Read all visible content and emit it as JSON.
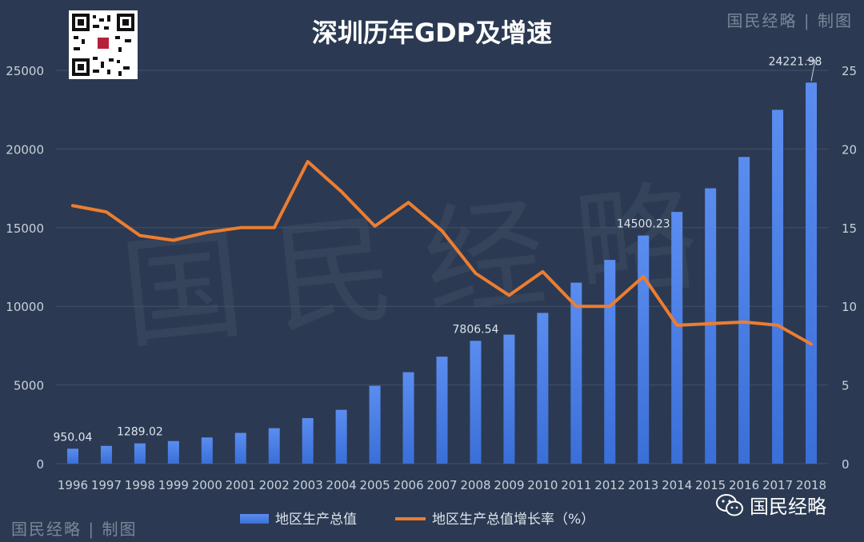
{
  "chart_data": {
    "type": "bar+line",
    "title": "深圳历年GDP及增速",
    "categories": [
      "1996",
      "1997",
      "1998",
      "1999",
      "2000",
      "2001",
      "2002",
      "2003",
      "2004",
      "2005",
      "2006",
      "2007",
      "2008",
      "2009",
      "2010",
      "2011",
      "2012",
      "2013",
      "2014",
      "2015",
      "2016",
      "2017",
      "2018"
    ],
    "series": [
      {
        "name": "地区生产总值",
        "type": "bar",
        "axis": "left",
        "color": "#3a6fd8",
        "values": [
          950.04,
          1130,
          1289.02,
          1436,
          1665,
          1955,
          2257,
          2895,
          3422,
          4951,
          5814,
          6801,
          7806.54,
          8201,
          9582,
          11506,
          12950,
          14500.23,
          16002,
          17503,
          19493,
          22490,
          24221.98
        ]
      },
      {
        "name": "地区生产总值增长率（%）",
        "type": "line",
        "axis": "right",
        "color": "#ed7d31",
        "values": [
          16.4,
          16.0,
          14.5,
          14.2,
          14.7,
          15.0,
          15.0,
          19.2,
          17.3,
          15.1,
          16.6,
          14.8,
          12.1,
          10.7,
          12.2,
          10.0,
          10.0,
          11.9,
          8.8,
          8.9,
          9.0,
          8.8,
          7.6
        ]
      }
    ],
    "data_labels": [
      {
        "index": 0,
        "text": "950.04"
      },
      {
        "index": 2,
        "text": "1289.02"
      },
      {
        "index": 12,
        "text": "7806.54"
      },
      {
        "index": 17,
        "text": "14500.23"
      },
      {
        "index": 22,
        "text": "24221.98"
      }
    ],
    "y_left": {
      "min": 0,
      "max": 25000,
      "ticks": [
        "0",
        "5000",
        "10000",
        "15000",
        "20000",
        "25000"
      ]
    },
    "y_right": {
      "min": 0,
      "max": 25,
      "ticks": [
        "0",
        "5",
        "10",
        "15",
        "20",
        "25"
      ]
    },
    "grid": true,
    "legend_position": "bottom"
  },
  "branding": {
    "top_right": "国民经略 | 制图",
    "bottom_left": "国民经略 | 制图",
    "wechat": "国民经略",
    "watermark": "国民经略"
  },
  "colors": {
    "background": "#2b3a52",
    "grid": "#435069",
    "text": "#c9d0db",
    "bar": "#3a6fd8",
    "line": "#ed7d31"
  }
}
